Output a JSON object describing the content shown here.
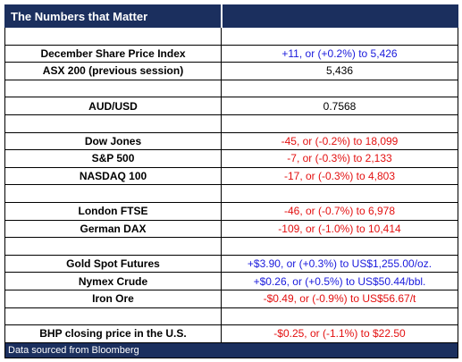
{
  "header": {
    "title": "The Numbers that Matter"
  },
  "groups": [
    {
      "rows": [
        {
          "label": "December Share Price Index",
          "value": "+11, or (+0.2%) to 5,426",
          "color": "#1a1adc"
        },
        {
          "label": "ASX 200 (previous session)",
          "value": "5,436",
          "color": "#000000"
        }
      ]
    },
    {
      "rows": [
        {
          "label": "AUD/USD",
          "value": "0.7568",
          "color": "#000000"
        }
      ]
    },
    {
      "rows": [
        {
          "label": "Dow Jones",
          "value": "-45, or (-0.2%) to 18,099",
          "color": "#e31010"
        },
        {
          "label": "S&P 500",
          "value": "-7, or (-0.3%) to 2,133",
          "color": "#e31010"
        },
        {
          "label": "NASDAQ 100",
          "value": "-17, or (-0.3%) to 4,803",
          "color": "#e31010"
        }
      ]
    },
    {
      "rows": [
        {
          "label": "London FTSE",
          "value": "-46, or (-0.7%) to 6,978",
          "color": "#e31010"
        },
        {
          "label": "German DAX",
          "value": "-109, or (-1.0%) to 10,414",
          "color": "#e31010"
        }
      ]
    },
    {
      "rows": [
        {
          "label": "Gold Spot Futures",
          "value": "+$3.90, or (+0.3%) to US$1,255.00/oz.",
          "color": "#1a1adc"
        },
        {
          "label": "Nymex Crude",
          "value": "+$0.26, or (+0.5%) to US$50.44/bbl.",
          "color": "#1a1adc"
        },
        {
          "label": "Iron Ore",
          "value": "-$0.49, or (-0.9%) to US$56.67/t",
          "color": "#e31010"
        }
      ]
    },
    {
      "rows": [
        {
          "label": "BHP closing price in the U.S.",
          "value": "-$0.25, or (-1.1%) to $22.50",
          "color": "#e31010"
        }
      ]
    }
  ],
  "footer": {
    "text": "Data sourced from Bloomberg"
  }
}
